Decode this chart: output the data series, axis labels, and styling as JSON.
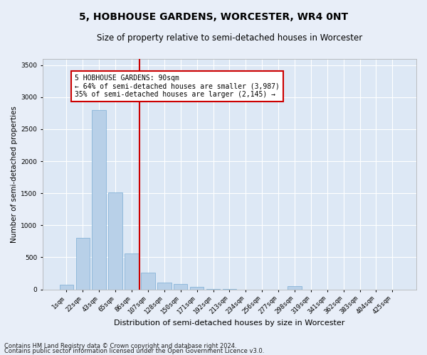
{
  "title_line1": "5, HOBHOUSE GARDENS, WORCESTER, WR4 0NT",
  "title_line2": "Size of property relative to semi-detached houses in Worcester",
  "xlabel": "Distribution of semi-detached houses by size in Worcester",
  "ylabel": "Number of semi-detached properties",
  "categories": [
    "1sqm",
    "22sqm",
    "43sqm",
    "65sqm",
    "86sqm",
    "107sqm",
    "128sqm",
    "150sqm",
    "171sqm",
    "192sqm",
    "213sqm",
    "234sqm",
    "256sqm",
    "277sqm",
    "298sqm",
    "319sqm",
    "341sqm",
    "362sqm",
    "383sqm",
    "404sqm",
    "425sqm"
  ],
  "values": [
    75,
    800,
    2800,
    1510,
    560,
    260,
    105,
    80,
    45,
    10,
    3,
    1,
    1,
    0,
    50,
    0,
    0,
    0,
    0,
    0,
    0
  ],
  "bar_color": "#b8d0e8",
  "bar_edge_color": "#7aadd4",
  "vline_color": "#cc0000",
  "vline_index": 4.5,
  "annotation_text": "5 HOBHOUSE GARDENS: 90sqm\n← 64% of semi-detached houses are smaller (3,987)\n35% of semi-detached houses are larger (2,145) →",
  "annotation_box_facecolor": "#ffffff",
  "annotation_box_edgecolor": "#cc0000",
  "ylim": [
    0,
    3600
  ],
  "yticks": [
    0,
    500,
    1000,
    1500,
    2000,
    2500,
    3000,
    3500
  ],
  "footer_line1": "Contains HM Land Registry data © Crown copyright and database right 2024.",
  "footer_line2": "Contains public sector information licensed under the Open Government Licence v3.0.",
  "title1_fontsize": 10,
  "title2_fontsize": 8.5,
  "xlabel_fontsize": 8,
  "ylabel_fontsize": 7.5,
  "tick_fontsize": 6.5,
  "annotation_fontsize": 7,
  "footer_fontsize": 6,
  "background_color": "#e8eef8",
  "plot_bg_color": "#dde8f5"
}
